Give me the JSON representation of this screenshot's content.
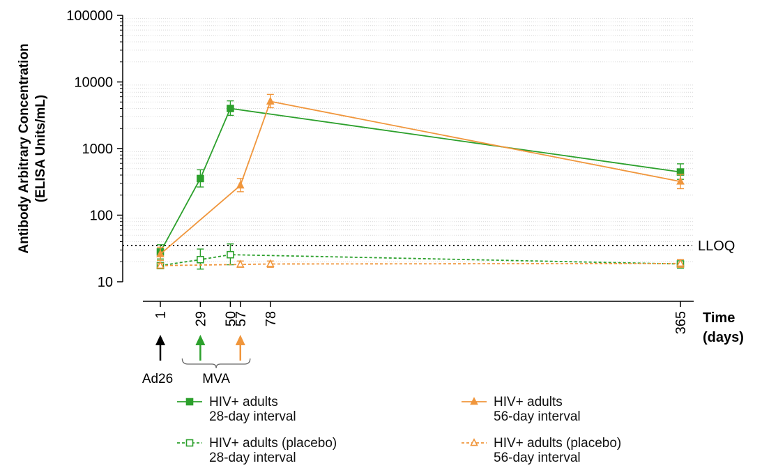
{
  "chart_data": {
    "type": "line",
    "ylabel_line1": "Antibody Arbitrary Concentration",
    "ylabel_line2": "(ELISA Units/mL)",
    "xlabel_line1": "Time",
    "xlabel_line2": "(days)",
    "y_scale": "log",
    "ylim": [
      10,
      100000
    ],
    "y_ticks": [
      "10",
      "100",
      "1000",
      "10000",
      "100000"
    ],
    "x_ticks": [
      1,
      29,
      50,
      57,
      78,
      365
    ],
    "x_tick_labels": [
      "1",
      "29",
      "50",
      "57",
      "78",
      "365"
    ],
    "grid": "horizontal dotted minor gridlines",
    "reference_line": {
      "label": "LLOQ",
      "value": 35
    },
    "series": [
      {
        "key": "hiv_28",
        "color": "#2ca02c",
        "marker": "filled-square",
        "dash": "solid",
        "points": [
          {
            "x": 1,
            "y": 28,
            "lo": 22,
            "hi": 36
          },
          {
            "x": 29,
            "y": 355,
            "lo": 265,
            "hi": 480
          },
          {
            "x": 50,
            "y": 4000,
            "lo": 3150,
            "hi": 5200
          },
          {
            "x": 365,
            "y": 445,
            "lo": 345,
            "hi": 590
          }
        ]
      },
      {
        "key": "hiv_56",
        "color": "#f0963c",
        "marker": "filled-triangle",
        "dash": "solid",
        "points": [
          {
            "x": 1,
            "y": 26,
            "lo": 21,
            "hi": 33
          },
          {
            "x": 57,
            "y": 280,
            "lo": 225,
            "hi": 355
          },
          {
            "x": 78,
            "y": 5100,
            "lo": 4100,
            "hi": 6500
          },
          {
            "x": 365,
            "y": 320,
            "lo": 250,
            "hi": 410
          }
        ]
      },
      {
        "key": "placebo_28",
        "color": "#2ca02c",
        "marker": "open-square",
        "dash": "dashed",
        "points": [
          {
            "x": 1,
            "y": 17.5,
            "lo": 16,
            "hi": 19
          },
          {
            "x": 29,
            "y": 21.5,
            "lo": 15.5,
            "hi": 31
          },
          {
            "x": 50,
            "y": 25.5,
            "lo": 18,
            "hi": 37
          },
          {
            "x": 365,
            "y": 18.5,
            "lo": 16,
            "hi": 21.5
          }
        ]
      },
      {
        "key": "placebo_56",
        "color": "#f0963c",
        "marker": "open-triangle",
        "dash": "dashed",
        "points": [
          {
            "x": 1,
            "y": 17.5,
            "lo": 16,
            "hi": 19
          },
          {
            "x": 57,
            "y": 18.2,
            "lo": 16.5,
            "hi": 20.5
          },
          {
            "x": 78,
            "y": 18.5,
            "lo": 16.5,
            "hi": 20.5
          },
          {
            "x": 365,
            "y": 18.8,
            "lo": 16.5,
            "hi": 21.5
          }
        ]
      }
    ],
    "dose_arrows": [
      {
        "day": 1,
        "color": "#000000"
      },
      {
        "day": 29,
        "color": "#2ca02c"
      },
      {
        "day": 57,
        "color": "#f0963c"
      }
    ],
    "dose_labels": {
      "first": "Ad26",
      "second": "MVA"
    }
  },
  "legend": [
    {
      "key": "hiv_28",
      "line1": "HIV+ adults",
      "line2": "28-day interval"
    },
    {
      "key": "placebo_28",
      "line1": "HIV+ adults (placebo)",
      "line2": "28-day interval"
    },
    {
      "key": "hiv_56",
      "line1": "HIV+ adults",
      "line2": "56-day interval"
    },
    {
      "key": "placebo_56",
      "line1": "HIV+ adults (placebo)",
      "line2": "56-day interval"
    }
  ]
}
